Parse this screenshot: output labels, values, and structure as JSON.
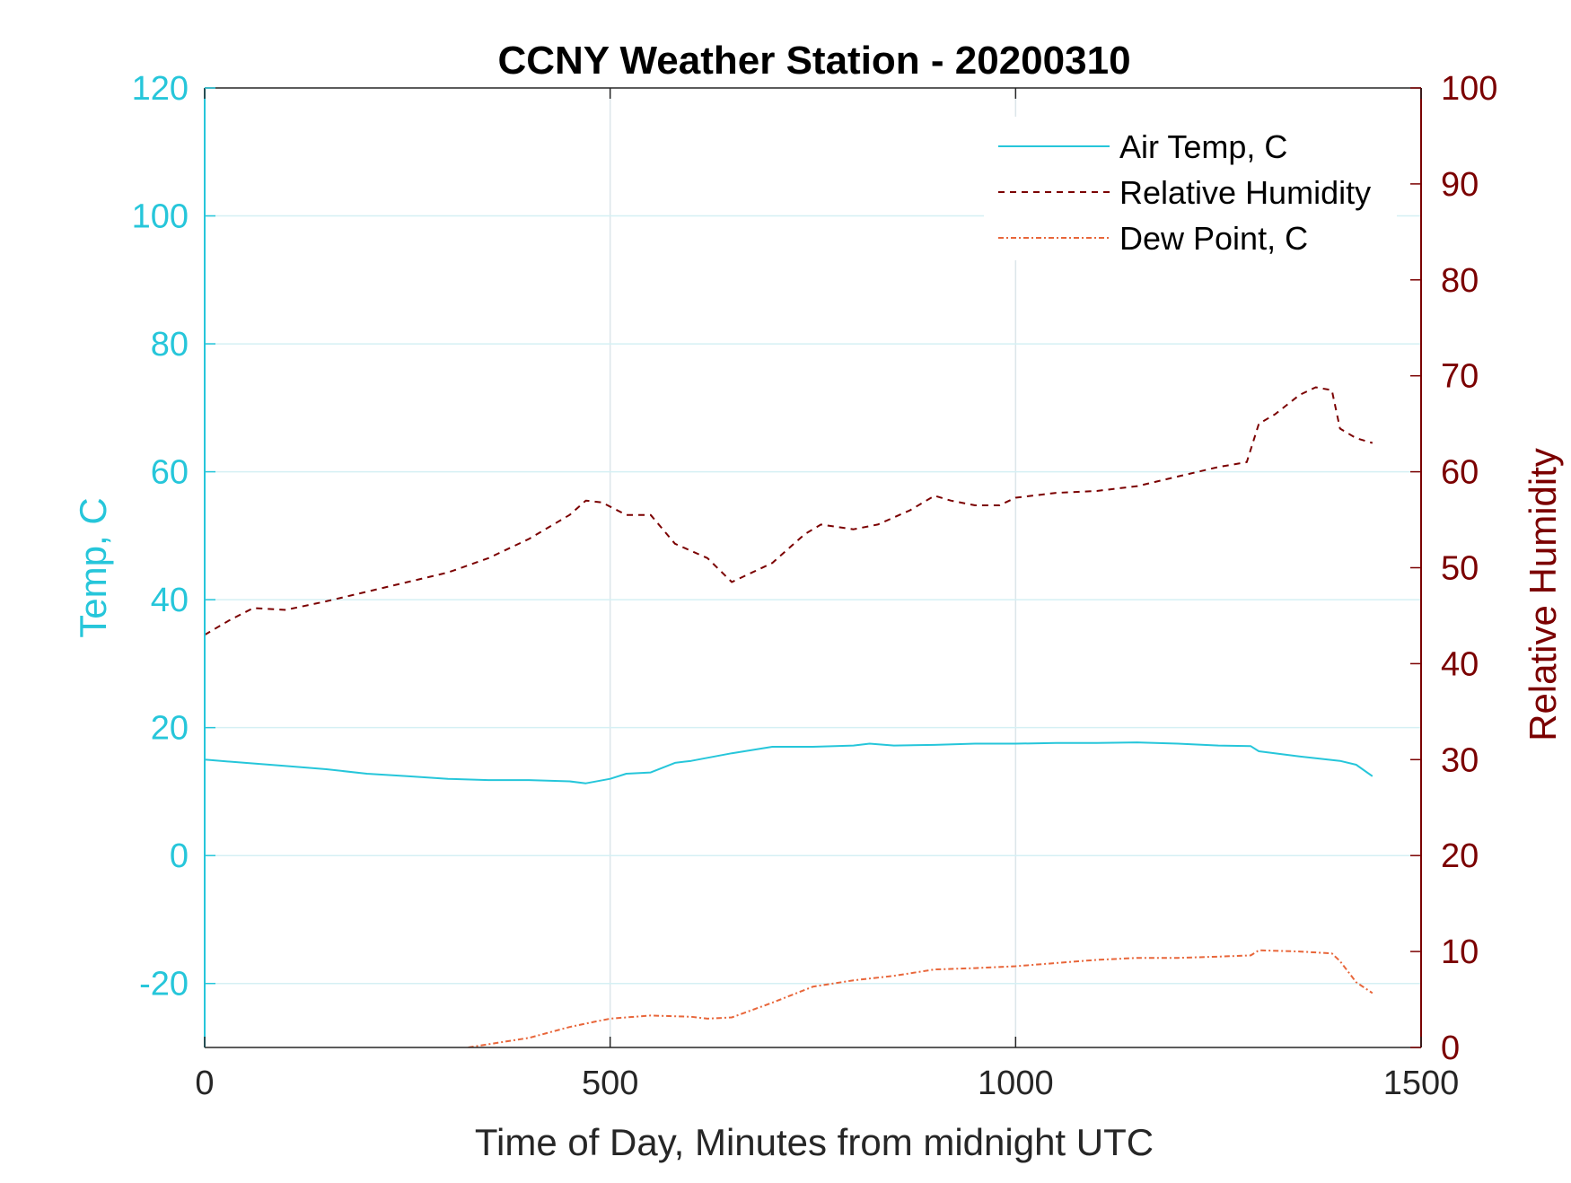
{
  "colors": {
    "temp": "#26C6DA",
    "humidity": "#7B0000",
    "dewpoint": "#E8663A",
    "axis_text": "#262626",
    "grid": "#DCE6EA"
  },
  "chart_data": {
    "type": "line",
    "title": "CCNY Weather Station - 20200310",
    "xlabel": "Time of Day, Minutes from midnight UTC",
    "ylabel_left": "Temp, C",
    "ylabel_right": "Relative Humidity",
    "xlim": [
      0,
      1500
    ],
    "ylim_left": [
      -30,
      120
    ],
    "ylim_right": [
      0,
      100
    ],
    "xticks": [
      0,
      500,
      1000,
      1500
    ],
    "yticks_left": [
      -20,
      0,
      20,
      40,
      60,
      80,
      100,
      120
    ],
    "yticks_right": [
      0,
      10,
      20,
      30,
      40,
      50,
      60,
      70,
      80,
      90,
      100
    ],
    "grid": "on",
    "legend_position": "top-right",
    "series": [
      {
        "name": "Air Temp, C",
        "axis": "left",
        "style": "solid",
        "x": [
          0,
          50,
          100,
          150,
          200,
          250,
          300,
          350,
          400,
          450,
          470,
          500,
          520,
          550,
          580,
          600,
          650,
          700,
          750,
          800,
          820,
          850,
          900,
          950,
          1000,
          1050,
          1100,
          1150,
          1200,
          1250,
          1290,
          1300,
          1350,
          1400,
          1420,
          1440
        ],
        "y": [
          15,
          14.5,
          14,
          13.5,
          12.8,
          12.4,
          12,
          11.8,
          11.8,
          11.6,
          11.3,
          12,
          12.8,
          13,
          14.5,
          14.8,
          16,
          17,
          17,
          17.2,
          17.5,
          17.2,
          17.3,
          17.5,
          17.5,
          17.6,
          17.6,
          17.7,
          17.5,
          17.2,
          17.1,
          16.3,
          15.5,
          14.8,
          14.2,
          12.4
        ]
      },
      {
        "name": "Relative Humidity",
        "axis": "right",
        "style": "dashed",
        "x": [
          0,
          30,
          60,
          100,
          150,
          200,
          250,
          300,
          350,
          400,
          450,
          470,
          490,
          520,
          550,
          580,
          620,
          650,
          700,
          740,
          760,
          800,
          830,
          870,
          900,
          920,
          950,
          980,
          1000,
          1050,
          1100,
          1150,
          1200,
          1250,
          1285,
          1300,
          1320,
          1350,
          1370,
          1390,
          1400,
          1420,
          1440
        ],
        "y": [
          43,
          44.5,
          45.8,
          45.6,
          46.5,
          47.5,
          48.5,
          49.5,
          51,
          53,
          55.5,
          57,
          56.8,
          55.5,
          55.5,
          52.5,
          51,
          48.5,
          50.5,
          53.5,
          54.5,
          54,
          54.5,
          56,
          57.5,
          57,
          56.5,
          56.5,
          57.3,
          57.8,
          58,
          58.5,
          59.5,
          60.5,
          61,
          65,
          66,
          68,
          68.8,
          68.5,
          64.5,
          63.5,
          63
        ]
      },
      {
        "name": "Dew Point, C",
        "axis": "left",
        "style": "dash-dot",
        "x": [
          0,
          100,
          200,
          250,
          300,
          350,
          400,
          450,
          480,
          500,
          550,
          600,
          620,
          650,
          700,
          750,
          800,
          850,
          900,
          950,
          1000,
          1050,
          1100,
          1150,
          1200,
          1250,
          1290,
          1300,
          1350,
          1390,
          1400,
          1420,
          1440
        ],
        "y": [
          -30.5,
          -30.8,
          -30.8,
          -30.8,
          -30.5,
          -29.5,
          -28.5,
          -26.8,
          -26,
          -25.5,
          -25,
          -25.2,
          -25.5,
          -25.3,
          -23,
          -20.5,
          -19.5,
          -18.8,
          -17.8,
          -17.6,
          -17.3,
          -16.8,
          -16.3,
          -16,
          -16,
          -15.8,
          -15.6,
          -14.8,
          -15,
          -15.3,
          -16.5,
          -19.8,
          -21.5
        ]
      }
    ]
  }
}
